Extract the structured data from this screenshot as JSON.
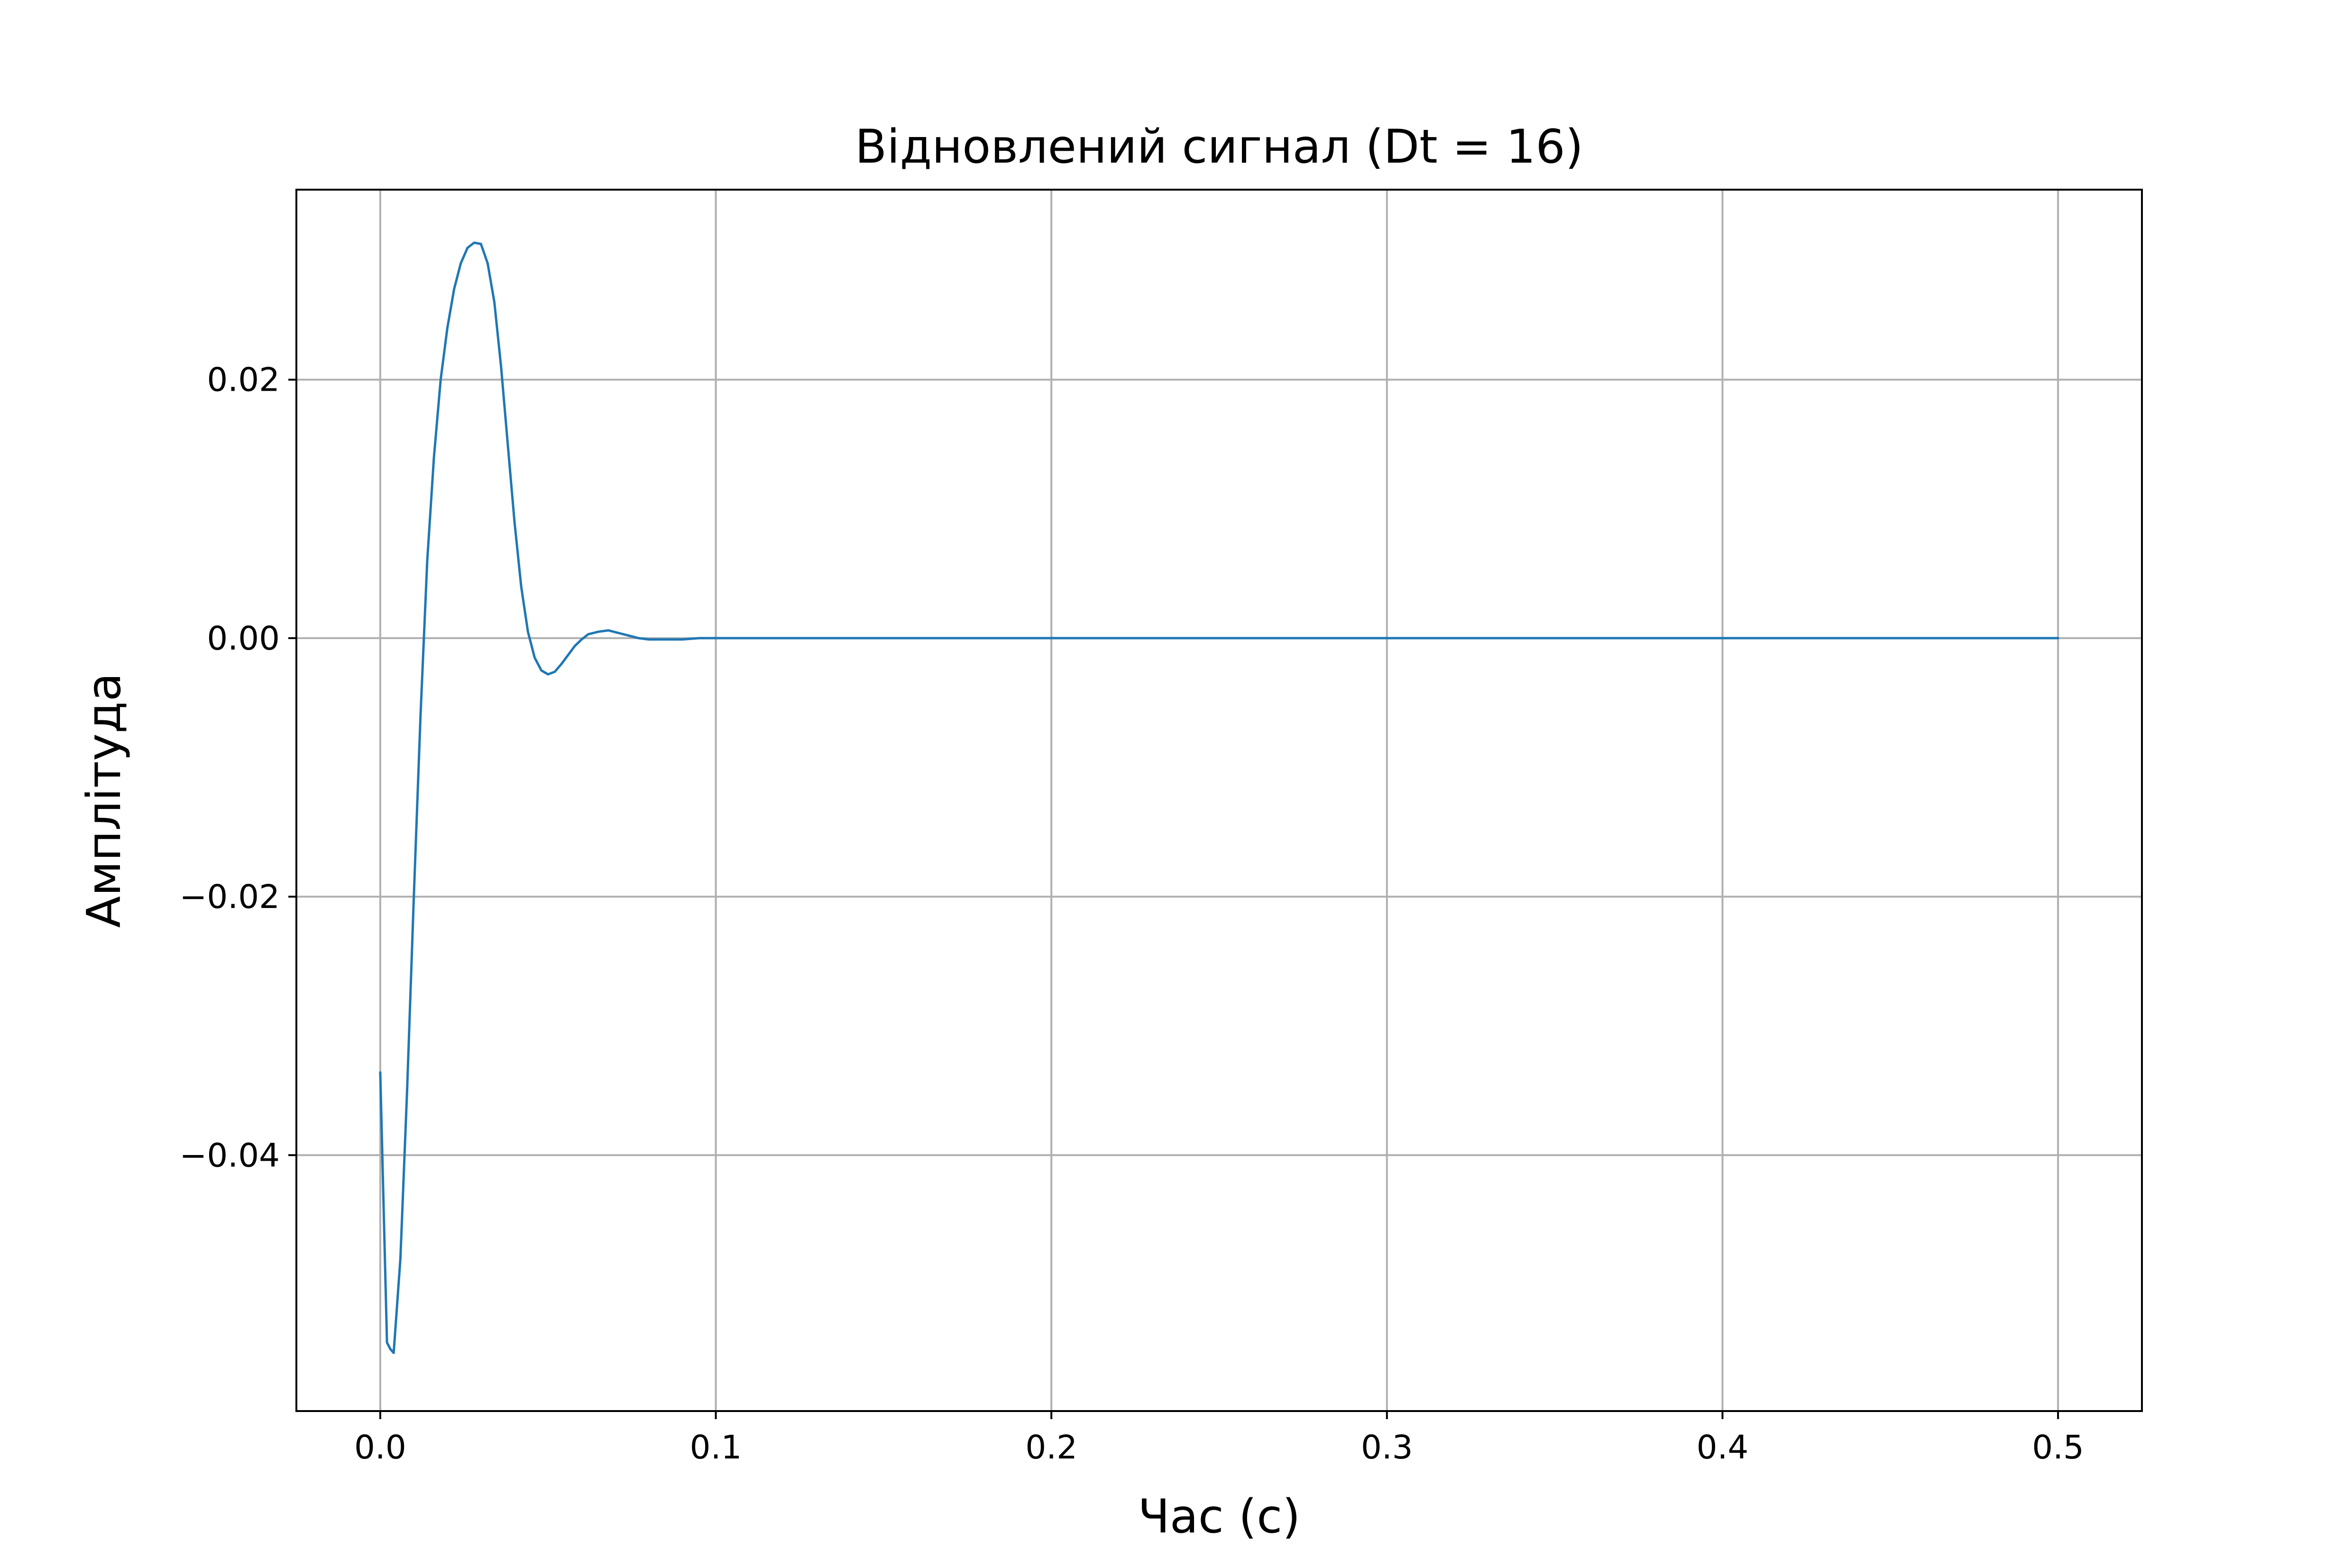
{
  "chart_data": {
    "type": "line",
    "title": "Відновлений сигнал (Dt = 16)",
    "xlabel": "Час (с)",
    "ylabel": "Амплітуда",
    "xlim": [
      -0.025,
      0.525
    ],
    "ylim": [
      -0.0598,
      0.0347
    ],
    "grid": true,
    "legend": "none",
    "xticks": [
      0.0,
      0.1,
      0.2,
      0.3,
      0.4,
      0.5
    ],
    "xtick_labels": [
      "0.0",
      "0.1",
      "0.2",
      "0.3",
      "0.4",
      "0.5"
    ],
    "yticks": [
      0.02,
      0.0,
      -0.02,
      -0.04
    ],
    "ytick_labels": [
      "0.02",
      "0.00",
      "−0.02",
      "−0.04"
    ],
    "colors": {
      "line": "#1f77b4",
      "grid": "#b0b0b0",
      "axes": "#000000"
    },
    "series": [
      {
        "x": [
          0.0,
          0.002,
          0.003,
          0.004,
          0.006,
          0.008,
          0.01,
          0.012,
          0.014,
          0.016,
          0.018,
          0.02,
          0.022,
          0.024,
          0.026,
          0.028,
          0.03,
          0.032,
          0.034,
          0.036,
          0.038,
          0.04,
          0.042,
          0.044,
          0.046,
          0.048,
          0.05,
          0.052,
          0.054,
          0.056,
          0.058,
          0.06,
          0.062,
          0.065,
          0.068,
          0.071,
          0.074,
          0.077,
          0.08,
          0.085,
          0.09,
          0.095,
          0.1,
          0.11,
          0.12,
          0.15,
          0.2,
          0.3,
          0.4,
          0.5
        ],
        "y": [
          -0.0336,
          -0.0545,
          -0.055,
          -0.0553,
          -0.048,
          -0.035,
          -0.02,
          -0.006,
          0.006,
          0.014,
          0.02,
          0.024,
          0.027,
          0.029,
          0.0302,
          0.0306,
          0.0305,
          0.029,
          0.026,
          0.021,
          0.015,
          0.009,
          0.004,
          0.0005,
          -0.0015,
          -0.0025,
          -0.0028,
          -0.0026,
          -0.002,
          -0.0013,
          -0.0006,
          -0.0001,
          0.0003,
          0.0005,
          0.0006,
          0.0004,
          0.0002,
          0.0,
          -0.0001,
          -0.0001,
          -0.0001,
          0.0,
          0.0,
          0.0,
          0.0,
          0.0,
          0.0,
          0.0,
          0.0,
          0.0
        ]
      }
    ]
  }
}
